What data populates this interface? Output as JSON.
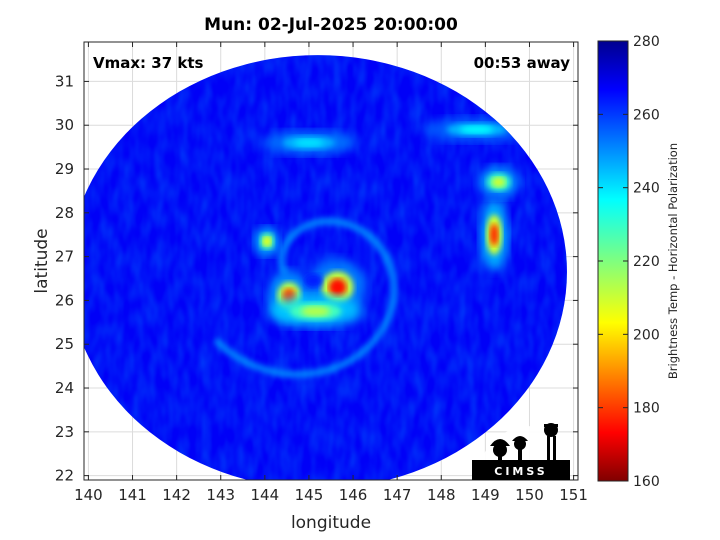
{
  "chart_data": {
    "type": "heatmap",
    "title": "Mun: 02-Jul-2025 20:00:00",
    "xlabel": "longitude",
    "ylabel": "latitude",
    "xlim": [
      139.9,
      151.1
    ],
    "ylim": [
      21.9,
      31.9
    ],
    "xticks": [
      140,
      141,
      142,
      143,
      144,
      145,
      146,
      147,
      148,
      149,
      150,
      151
    ],
    "yticks": [
      22,
      23,
      24,
      25,
      26,
      27,
      28,
      29,
      30,
      31
    ],
    "grid": true,
    "annotations": {
      "left": "Vmax: 37 kts",
      "right": "00:53 away"
    },
    "colorbar": {
      "label": "Brightness Temp - Horizontal Polarization",
      "range": [
        160,
        280
      ],
      "ticks": [
        160,
        180,
        200,
        220,
        240,
        260,
        280
      ],
      "colormap": "jet"
    },
    "swath": {
      "center_lon": 145.2,
      "center_lat": 26.65,
      "radius_lon": 5.65,
      "radius_lat": 4.95,
      "background_value": 266
    },
    "features": [
      {
        "name": "eyewall-east",
        "lon": 145.65,
        "lat": 26.3,
        "value": 176
      },
      {
        "name": "eyewall-west",
        "lon": 144.55,
        "lat": 26.1,
        "value": 182
      },
      {
        "name": "core-south",
        "lon": 145.15,
        "lat": 25.75,
        "value": 214
      },
      {
        "name": "band-west",
        "lon": 144.05,
        "lat": 27.35,
        "value": 205
      },
      {
        "name": "outer-band-east",
        "lon": 149.2,
        "lat": 27.5,
        "value": 180
      },
      {
        "name": "outer-band-east-north",
        "lon": 149.3,
        "lat": 28.7,
        "value": 210
      },
      {
        "name": "band-ne-fragments",
        "lon": 148.8,
        "lat": 29.9,
        "value": 235
      },
      {
        "name": "band-north-arc",
        "lon": 145.0,
        "lat": 29.6,
        "value": 238
      }
    ]
  },
  "logo": {
    "text": "CIMSS",
    "colors": {
      "primary": "#000000",
      "text": "#ffffff"
    }
  }
}
